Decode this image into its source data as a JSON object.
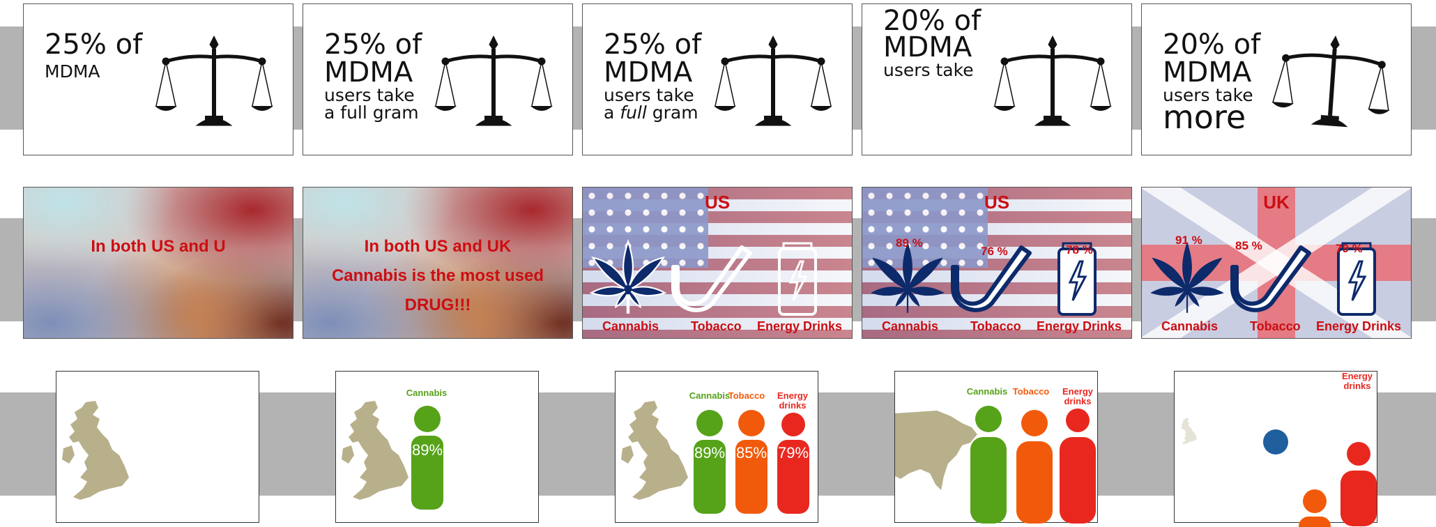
{
  "row1": {
    "frame1": {
      "line1": "25% of",
      "line2": "MDMA"
    },
    "frame2": {
      "line1": "25% of",
      "line2": "MDMA",
      "line3": "users take",
      "line4": "a full gram"
    },
    "frame3": {
      "line1": "25% of",
      "line2": "MDMA",
      "line3": "users take",
      "line4_pre": "a ",
      "line4_em": "full",
      "line4_post": " gram"
    },
    "frame4": {
      "line1": "20% of",
      "line2": "MDMA",
      "line3": "users take"
    },
    "frame5": {
      "line1": "20% of",
      "line2": "MDMA",
      "line3": "users take",
      "line4": "more"
    }
  },
  "row2": {
    "frame1": {
      "headline": "In both US and U"
    },
    "frame2": {
      "line1": "In both US and UK",
      "line2": "Cannabis is the most used",
      "line3": "DRUG!!!"
    },
    "frame3": {
      "country": "US",
      "labels": [
        "Cannabis",
        "Tobacco",
        "Energy Drinks"
      ]
    },
    "frame4": {
      "country": "US",
      "labels": [
        "Cannabis",
        "Tobacco",
        "Energy Drinks"
      ],
      "values": [
        "89 %",
        "76 %",
        "78 %"
      ]
    },
    "frame5": {
      "country": "UK",
      "labels": [
        "Cannabis",
        "Tobacco",
        "Energy Drinks"
      ],
      "values": [
        "91 %",
        "85 %",
        "79 %"
      ]
    },
    "colors": {
      "red": "#cc0e12",
      "navy": "#0d2a6b"
    }
  },
  "row3": {
    "frame2": {
      "label": "Cannabis",
      "value": "89%"
    },
    "frame3": {
      "labels": [
        "Cannabis",
        "Tobacco",
        "Energy drinks"
      ],
      "values": [
        "89%",
        "85%",
        "79%"
      ]
    },
    "frame4": {
      "labels": [
        "Cannabis",
        "Tobacco",
        "Energy drinks"
      ]
    },
    "frame5": {
      "label": "Energy drinks"
    },
    "colors": {
      "cannabis": "#56a219",
      "tobacco": "#f25a0b",
      "energy": "#e8281f",
      "map": "#b7b08b",
      "blue": "#1f5f9d"
    }
  }
}
